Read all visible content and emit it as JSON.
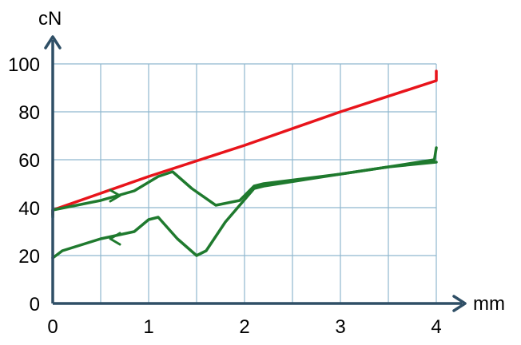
{
  "chart_data": {
    "type": "line",
    "xlabel": "mm",
    "ylabel": "cN",
    "xlim": [
      0,
      4
    ],
    "ylim": [
      0,
      100
    ],
    "x_ticks": [
      "0",
      "1",
      "2",
      "3",
      "4"
    ],
    "y_ticks": [
      "0",
      "20",
      "40",
      "60",
      "80",
      "100"
    ],
    "grid": true,
    "grid_step": {
      "x": 0.5,
      "y": 20
    },
    "colors": {
      "axis": "#2f4f66",
      "grid": "#8fb8cf",
      "red": "#e8141b",
      "green": "#1f7a2e"
    },
    "series": [
      {
        "color": "#e8141b",
        "points": [
          [
            0,
            37
          ],
          [
            0,
            39
          ],
          [
            1,
            53
          ],
          [
            2,
            66
          ],
          [
            3,
            80
          ],
          [
            4,
            93
          ],
          [
            4,
            97
          ]
        ]
      },
      {
        "color": "#1f7a2e",
        "direction": "forward",
        "points": [
          [
            0,
            36
          ],
          [
            0,
            39
          ],
          [
            0.5,
            43
          ],
          [
            0.85,
            47
          ],
          [
            1.1,
            53
          ],
          [
            1.25,
            55
          ],
          [
            1.45,
            48
          ],
          [
            1.7,
            41
          ],
          [
            1.95,
            43
          ],
          [
            2.1,
            49
          ],
          [
            2.2,
            50
          ],
          [
            3,
            54
          ],
          [
            3.5,
            57
          ],
          [
            3.98,
            60
          ],
          [
            4,
            65
          ]
        ]
      },
      {
        "color": "#1f7a2e",
        "direction": "return",
        "points": [
          [
            4,
            59
          ],
          [
            3.5,
            57
          ],
          [
            3,
            54
          ],
          [
            2.2,
            49
          ],
          [
            2.1,
            48
          ],
          [
            1.8,
            34
          ],
          [
            1.6,
            22
          ],
          [
            1.5,
            20
          ],
          [
            1.3,
            27
          ],
          [
            1.1,
            36
          ],
          [
            1.0,
            35
          ],
          [
            0.85,
            30
          ],
          [
            0.5,
            27
          ],
          [
            0.1,
            22
          ],
          [
            0,
            19
          ]
        ]
      }
    ],
    "arrows": [
      {
        "series": 1,
        "x": 0.7,
        "y": 45,
        "dir": "right"
      },
      {
        "series": 2,
        "x": 0.6,
        "y": 27,
        "dir": "left"
      }
    ]
  }
}
